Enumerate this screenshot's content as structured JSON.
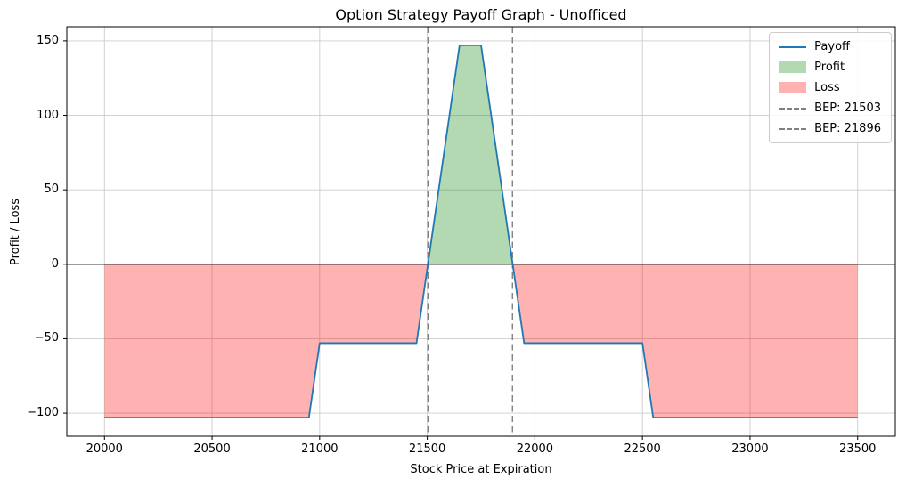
{
  "chart_data": {
    "type": "line",
    "title": "Option Strategy Payoff Graph - Unofficed",
    "xlabel": "Stock Price at Expiration",
    "ylabel": "Profit / Loss",
    "xlim": [
      19825,
      23675
    ],
    "ylim": [
      -115.5,
      159.5
    ],
    "x_ticks": [
      20000,
      20500,
      21000,
      21500,
      22000,
      22500,
      23000,
      23500
    ],
    "y_ticks": [
      -100,
      -50,
      0,
      50,
      100,
      150
    ],
    "grid": true,
    "legend_position": "upper right",
    "series": [
      {
        "name": "Payoff",
        "color": "#1f77b4",
        "points": [
          [
            20000,
            -103
          ],
          [
            20950,
            -103
          ],
          [
            21000,
            -53
          ],
          [
            21450,
            -53
          ],
          [
            21650,
            147
          ],
          [
            21750,
            147
          ],
          [
            21950,
            -53
          ],
          [
            22500,
            -53
          ],
          [
            22550,
            -103
          ],
          [
            23500,
            -103
          ]
        ]
      }
    ],
    "fills": {
      "profit": {
        "label": "Profit",
        "color": "rgba(0,128,0,0.30)"
      },
      "loss": {
        "label": "Loss",
        "color": "rgba(255,0,0,0.30)"
      }
    },
    "break_even_points": [
      {
        "label": "BEP: 21503",
        "value": 21503,
        "color": "#808080"
      },
      {
        "label": "BEP: 21896",
        "value": 21896,
        "color": "#808080"
      }
    ],
    "legend": {
      "items": [
        {
          "label": "Payoff",
          "type": "line",
          "color": "#1f77b4"
        },
        {
          "label": "Profit",
          "type": "patch",
          "color": "rgba(0,128,0,0.30)"
        },
        {
          "label": "Loss",
          "type": "patch",
          "color": "rgba(255,0,0,0.30)"
        },
        {
          "label": "BEP: 21503",
          "type": "dashed",
          "color": "#808080"
        },
        {
          "label": "BEP: 21896",
          "type": "dashed",
          "color": "#808080"
        }
      ]
    }
  }
}
